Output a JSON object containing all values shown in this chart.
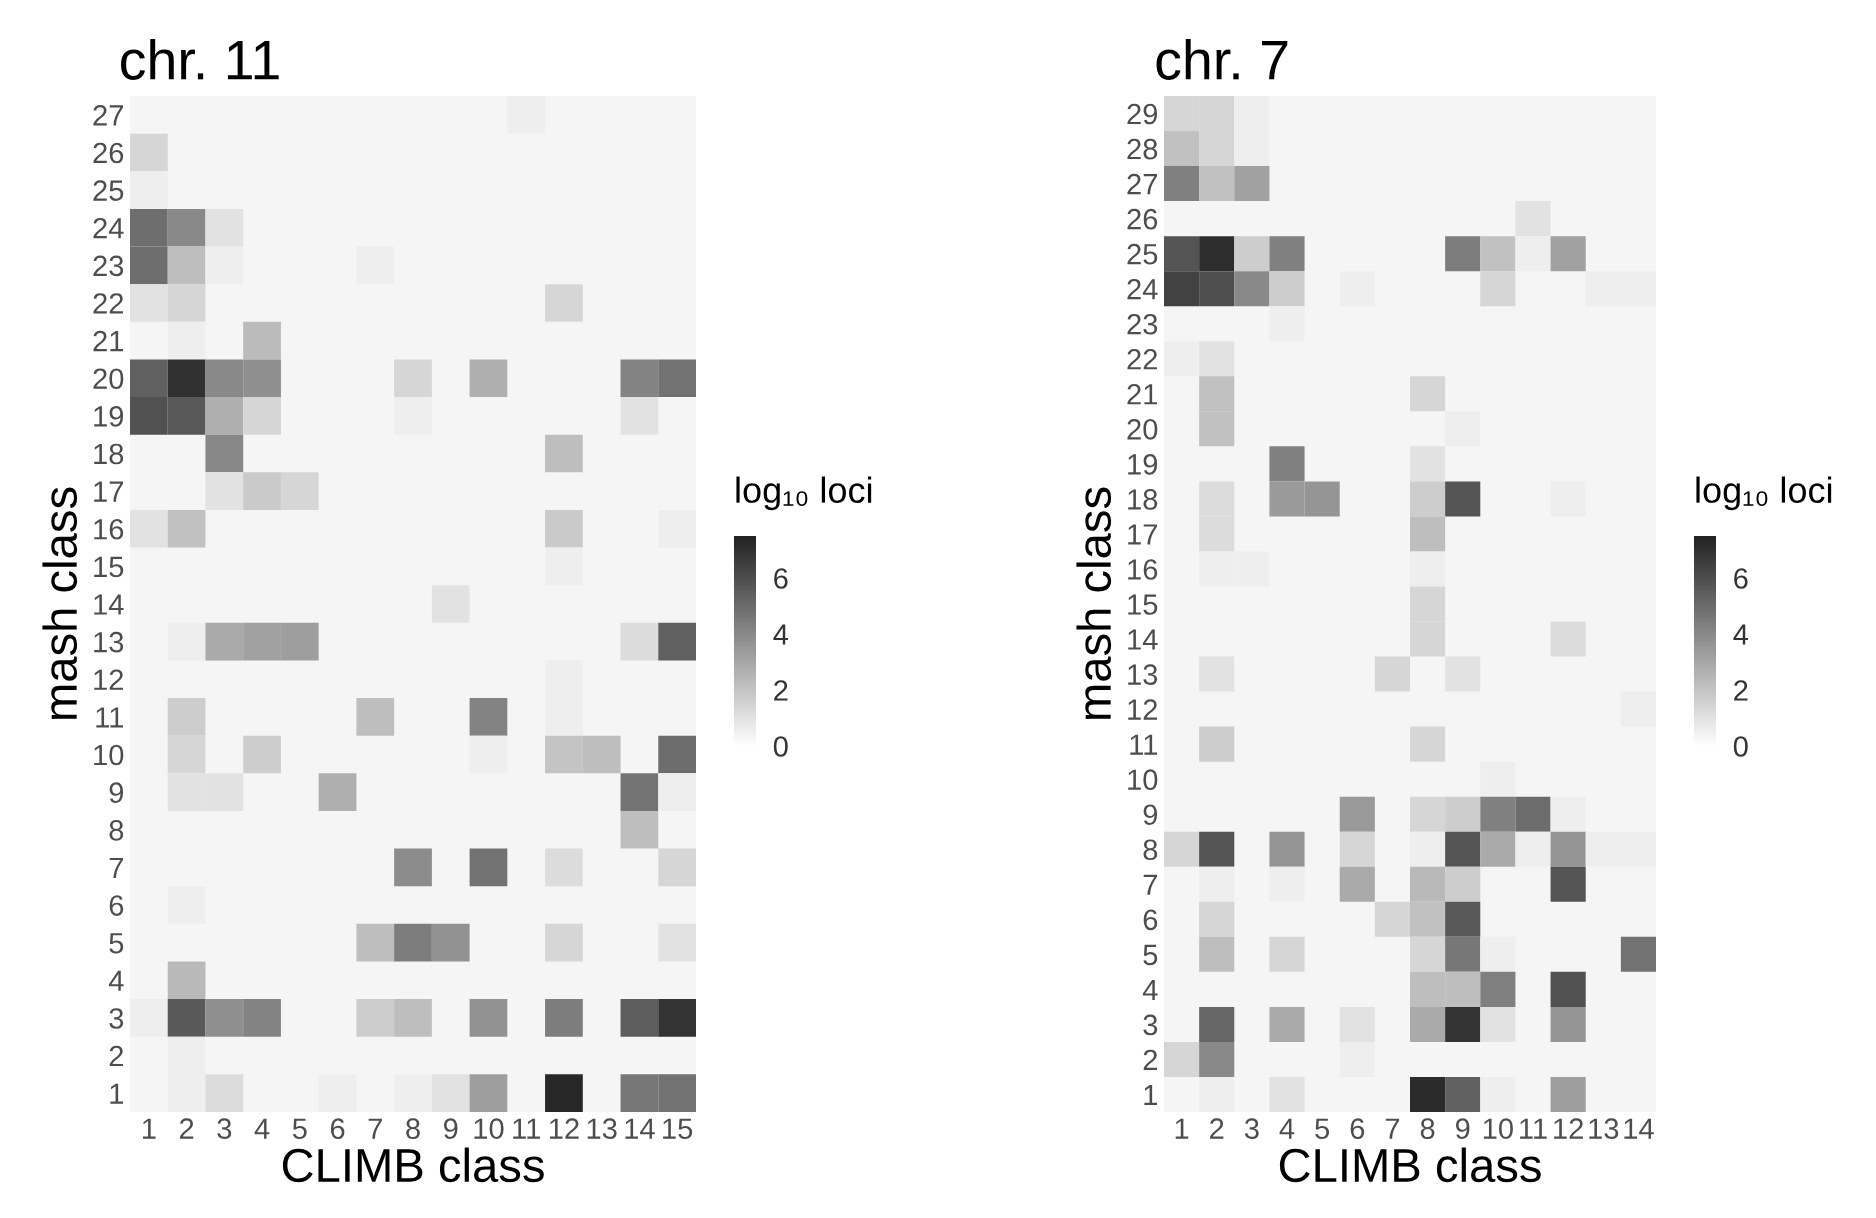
{
  "chart_data": [
    {
      "type": "heatmap",
      "title": "chr. 11",
      "xlabel": "CLIMB class",
      "ylabel": "mash class",
      "legend_title": "log₁₀ loci",
      "clim": [
        0,
        7.5
      ],
      "cticks": [
        0,
        2,
        4,
        6
      ],
      "categories": [
        "1",
        "2",
        "3",
        "4",
        "5",
        "6",
        "7",
        "8",
        "9",
        "10",
        "11",
        "12",
        "13",
        "14",
        "15"
      ],
      "y_categories": [
        "27",
        "26",
        "25",
        "24",
        "23",
        "22",
        "21",
        "20",
        "19",
        "18",
        "17",
        "16",
        "15",
        "14",
        "13",
        "12",
        "11",
        "10",
        "9",
        "8",
        "7",
        "6",
        "5",
        "4",
        "3",
        "2",
        "1"
      ],
      "cells": [
        [
          null,
          null,
          null,
          null,
          null,
          null,
          null,
          null,
          null,
          null,
          0.6,
          null,
          null,
          null,
          null
        ],
        [
          1.4,
          null,
          null,
          null,
          null,
          null,
          null,
          null,
          null,
          null,
          null,
          null,
          null,
          null,
          null
        ],
        [
          0.6,
          null,
          null,
          null,
          null,
          null,
          null,
          null,
          null,
          null,
          null,
          null,
          null,
          null,
          null
        ],
        [
          4.9,
          4.0,
          1.0,
          null,
          null,
          null,
          null,
          null,
          null,
          null,
          null,
          null,
          null,
          null,
          null
        ],
        [
          4.9,
          2.2,
          0.6,
          null,
          null,
          null,
          0.6,
          null,
          null,
          null,
          null,
          null,
          null,
          null,
          null
        ],
        [
          1.0,
          1.4,
          null,
          null,
          null,
          null,
          null,
          null,
          null,
          null,
          null,
          1.4,
          null,
          null,
          null
        ],
        [
          null,
          0.6,
          null,
          2.3,
          null,
          null,
          null,
          null,
          null,
          null,
          null,
          null,
          null,
          null,
          null
        ],
        [
          5.4,
          7.0,
          4.0,
          3.8,
          null,
          null,
          null,
          1.4,
          null,
          2.7,
          null,
          null,
          null,
          4.2,
          4.8
        ],
        [
          5.9,
          5.6,
          2.7,
          1.4,
          null,
          null,
          null,
          0.6,
          null,
          null,
          null,
          null,
          null,
          1.0,
          null
        ],
        [
          null,
          null,
          4.1,
          null,
          null,
          null,
          null,
          null,
          null,
          null,
          null,
          2.2,
          null,
          null,
          null
        ],
        [
          null,
          null,
          1.0,
          1.8,
          1.4,
          null,
          null,
          null,
          null,
          null,
          null,
          null,
          null,
          null,
          null
        ],
        [
          1.0,
          2.1,
          null,
          null,
          null,
          null,
          null,
          null,
          null,
          null,
          null,
          1.8,
          null,
          null,
          0.6
        ],
        [
          null,
          null,
          null,
          null,
          null,
          null,
          null,
          null,
          null,
          null,
          null,
          0.6,
          null,
          null,
          null
        ],
        [
          null,
          null,
          null,
          null,
          null,
          null,
          null,
          null,
          1.0,
          null,
          null,
          null,
          null,
          null,
          null
        ],
        [
          null,
          0.6,
          2.9,
          3.2,
          3.3,
          null,
          null,
          null,
          null,
          null,
          null,
          null,
          null,
          1.2,
          5.4
        ],
        [
          null,
          null,
          null,
          null,
          null,
          null,
          null,
          null,
          null,
          null,
          null,
          0.6,
          null,
          null,
          null
        ],
        [
          null,
          1.7,
          null,
          null,
          null,
          null,
          2.2,
          null,
          null,
          4.2,
          null,
          0.6,
          null,
          null,
          null
        ],
        [
          null,
          1.4,
          null,
          1.7,
          null,
          null,
          null,
          null,
          null,
          0.6,
          null,
          2.0,
          2.2,
          null,
          5.0
        ],
        [
          null,
          1.0,
          1.0,
          null,
          null,
          2.7,
          null,
          null,
          null,
          null,
          null,
          null,
          null,
          4.7,
          0.6
        ],
        [
          null,
          null,
          null,
          null,
          null,
          null,
          null,
          null,
          null,
          null,
          null,
          null,
          null,
          2.2,
          null
        ],
        [
          null,
          null,
          null,
          null,
          null,
          null,
          null,
          3.9,
          null,
          4.8,
          null,
          1.2,
          null,
          null,
          1.4
        ],
        [
          null,
          0.6,
          null,
          null,
          null,
          null,
          null,
          null,
          null,
          null,
          null,
          null,
          null,
          null,
          null
        ],
        [
          null,
          null,
          null,
          null,
          null,
          null,
          2.2,
          4.4,
          3.7,
          null,
          null,
          1.4,
          null,
          null,
          1.0
        ],
        [
          null,
          2.4,
          null,
          null,
          null,
          null,
          null,
          null,
          null,
          null,
          null,
          null,
          null,
          null,
          null
        ],
        [
          0.6,
          5.6,
          3.8,
          4.2,
          null,
          null,
          1.7,
          2.2,
          null,
          3.7,
          null,
          4.4,
          null,
          5.5,
          6.9
        ],
        [
          null,
          0.6,
          null,
          null,
          null,
          null,
          null,
          null,
          null,
          null,
          null,
          null,
          null,
          null,
          null
        ],
        [
          null,
          0.6,
          1.2,
          null,
          null,
          0.6,
          null,
          0.6,
          1.0,
          3.3,
          null,
          7.3,
          null,
          4.6,
          4.8
        ]
      ]
    },
    {
      "type": "heatmap",
      "title": "chr. 7",
      "xlabel": "CLIMB class",
      "ylabel": "mash class",
      "legend_title": "log₁₀ loci",
      "clim": [
        0,
        7.5
      ],
      "cticks": [
        0,
        2,
        4,
        6
      ],
      "categories": [
        "1",
        "2",
        "3",
        "4",
        "5",
        "6",
        "7",
        "8",
        "9",
        "10",
        "11",
        "12",
        "13",
        "14"
      ],
      "y_categories": [
        "29",
        "28",
        "27",
        "26",
        "25",
        "24",
        "23",
        "22",
        "21",
        "20",
        "19",
        "18",
        "17",
        "16",
        "15",
        "14",
        "13",
        "12",
        "11",
        "10",
        "9",
        "8",
        "7",
        "6",
        "5",
        "4",
        "3",
        "2",
        "1"
      ],
      "cells": [
        [
          1.4,
          1.4,
          0.6,
          null,
          null,
          null,
          null,
          null,
          null,
          null,
          null,
          null,
          null,
          null
        ],
        [
          2.1,
          1.4,
          0.6,
          null,
          null,
          null,
          null,
          null,
          null,
          null,
          null,
          null,
          null,
          null
        ],
        [
          4.3,
          2.1,
          3.2,
          null,
          null,
          null,
          null,
          null,
          null,
          null,
          null,
          null,
          null,
          null
        ],
        [
          null,
          null,
          null,
          null,
          null,
          null,
          null,
          null,
          null,
          null,
          1.0,
          null,
          null,
          null
        ],
        [
          5.8,
          7.1,
          1.7,
          4.3,
          null,
          null,
          null,
          null,
          4.4,
          2.1,
          0.6,
          3.2,
          null,
          null
        ],
        [
          6.4,
          6.0,
          4.0,
          1.7,
          null,
          0.6,
          null,
          null,
          null,
          1.4,
          null,
          null,
          0.6,
          0.6
        ],
        [
          null,
          null,
          null,
          0.6,
          null,
          null,
          null,
          null,
          null,
          null,
          null,
          null,
          null,
          null
        ],
        [
          0.6,
          1.0,
          null,
          null,
          null,
          null,
          null,
          null,
          null,
          null,
          null,
          null,
          null,
          null
        ],
        [
          null,
          2.1,
          null,
          null,
          null,
          null,
          null,
          1.4,
          null,
          null,
          null,
          null,
          null,
          null
        ],
        [
          null,
          2.1,
          null,
          null,
          null,
          null,
          null,
          null,
          0.6,
          null,
          null,
          null,
          null,
          null
        ],
        [
          null,
          null,
          null,
          4.3,
          null,
          null,
          null,
          1.0,
          null,
          null,
          null,
          null,
          null,
          null
        ],
        [
          null,
          1.2,
          null,
          3.4,
          3.6,
          null,
          null,
          1.7,
          5.8,
          null,
          null,
          0.6,
          null,
          null
        ],
        [
          null,
          1.2,
          null,
          null,
          null,
          null,
          null,
          2.2,
          null,
          null,
          null,
          null,
          null,
          null
        ],
        [
          null,
          0.6,
          0.6,
          null,
          null,
          null,
          null,
          0.6,
          null,
          null,
          null,
          null,
          null,
          null
        ],
        [
          null,
          null,
          null,
          null,
          null,
          null,
          null,
          1.4,
          null,
          null,
          null,
          null,
          null,
          null
        ],
        [
          null,
          null,
          null,
          null,
          null,
          null,
          null,
          1.4,
          null,
          null,
          null,
          1.2,
          null,
          null
        ],
        [
          null,
          1.0,
          null,
          null,
          null,
          null,
          1.4,
          null,
          1.0,
          null,
          null,
          null,
          null,
          null
        ],
        [
          null,
          null,
          null,
          null,
          null,
          null,
          null,
          null,
          null,
          null,
          null,
          null,
          null,
          0.6
        ],
        [
          null,
          1.7,
          null,
          null,
          null,
          null,
          null,
          1.4,
          null,
          null,
          null,
          null,
          null,
          null
        ],
        [
          null,
          null,
          null,
          null,
          null,
          null,
          null,
          null,
          null,
          0.6,
          null,
          null,
          null,
          null
        ],
        [
          null,
          null,
          null,
          null,
          null,
          3.4,
          null,
          1.4,
          1.7,
          4.3,
          5.0,
          0.6,
          null,
          null
        ],
        [
          1.4,
          5.8,
          null,
          3.6,
          null,
          1.4,
          null,
          0.6,
          5.8,
          2.9,
          0.6,
          3.6,
          0.6,
          0.6
        ],
        [
          null,
          0.6,
          null,
          0.6,
          null,
          2.9,
          null,
          2.4,
          1.7,
          null,
          null,
          5.8,
          null,
          null
        ],
        [
          null,
          1.4,
          null,
          null,
          null,
          null,
          1.4,
          2.1,
          5.6,
          null,
          null,
          null,
          null,
          null
        ],
        [
          null,
          2.2,
          null,
          1.4,
          null,
          null,
          null,
          1.4,
          4.6,
          0.6,
          null,
          null,
          null,
          4.8
        ],
        [
          null,
          null,
          null,
          null,
          null,
          null,
          null,
          2.2,
          2.2,
          4.3,
          null,
          5.9,
          null,
          null
        ],
        [
          null,
          5.2,
          null,
          2.9,
          null,
          1.0,
          null,
          2.9,
          6.9,
          1.0,
          null,
          3.6,
          null,
          null
        ],
        [
          1.4,
          4.0,
          null,
          null,
          null,
          0.6,
          null,
          null,
          null,
          null,
          null,
          null,
          null,
          null
        ],
        [
          null,
          0.6,
          null,
          1.0,
          null,
          null,
          null,
          7.2,
          5.4,
          0.6,
          null,
          3.3,
          null,
          null
        ]
      ]
    }
  ]
}
